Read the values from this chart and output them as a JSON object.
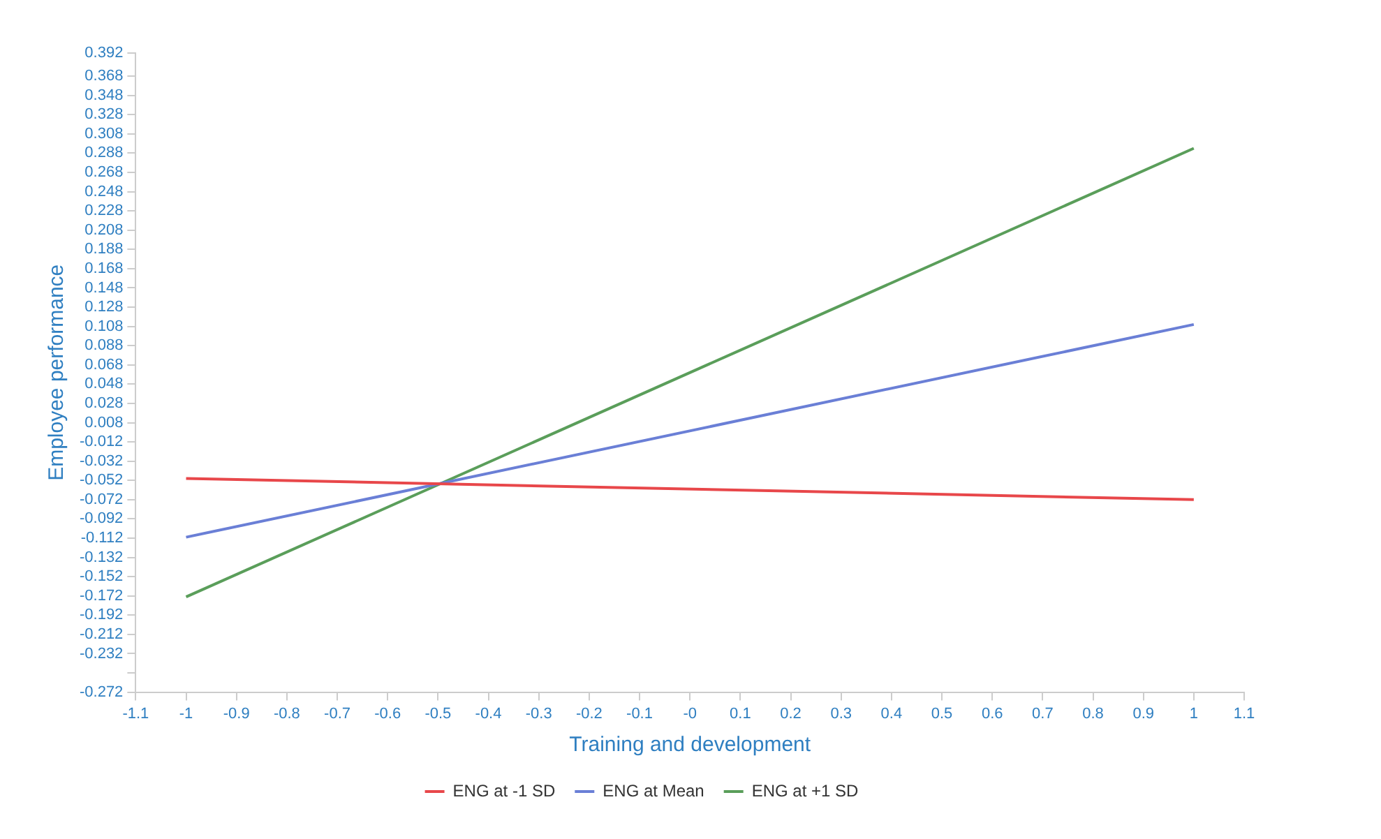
{
  "chart_data": {
    "type": "line",
    "xlabel": "Training and development",
    "ylabel": "Employee performance",
    "x": [
      -1,
      1
    ],
    "series": [
      {
        "name": "ENG at -1 SD",
        "color": "#e8474a",
        "values": [
          -0.05,
          -0.072
        ]
      },
      {
        "name": "ENG at Mean",
        "color": "#6a7fd6",
        "values": [
          -0.111,
          0.11
        ]
      },
      {
        "name": "ENG at +1 SD",
        "color": "#5a9e5a",
        "values": [
          -0.173,
          0.293
        ]
      }
    ],
    "xlim": [
      -1.1,
      1.1
    ],
    "xticks": [
      -1.1,
      -1,
      -0.9,
      -0.8,
      -0.7,
      -0.6,
      -0.5,
      -0.4,
      -0.3,
      -0.2,
      -0.1,
      {
        "value": 0,
        "label": "-0"
      },
      0.1,
      0.2,
      0.3,
      0.4,
      0.5,
      0.6,
      0.7,
      0.8,
      0.9,
      1,
      1.1
    ],
    "ylim": [
      -0.272,
      0.392
    ],
    "yticks": [
      0.392,
      0.368,
      0.348,
      0.328,
      0.308,
      0.288,
      0.268,
      0.248,
      0.228,
      0.208,
      0.188,
      0.168,
      0.148,
      0.128,
      0.108,
      0.088,
      0.068,
      0.048,
      0.028,
      0.008,
      -0.012,
      -0.032,
      -0.052,
      -0.072,
      -0.092,
      -0.112,
      -0.132,
      -0.152,
      -0.172,
      -0.192,
      -0.212,
      -0.232,
      {
        "value": -0.252,
        "label": null
      },
      -0.272
    ],
    "grid": false,
    "legend": "bottom",
    "marker": "none",
    "line_style": "solid"
  }
}
